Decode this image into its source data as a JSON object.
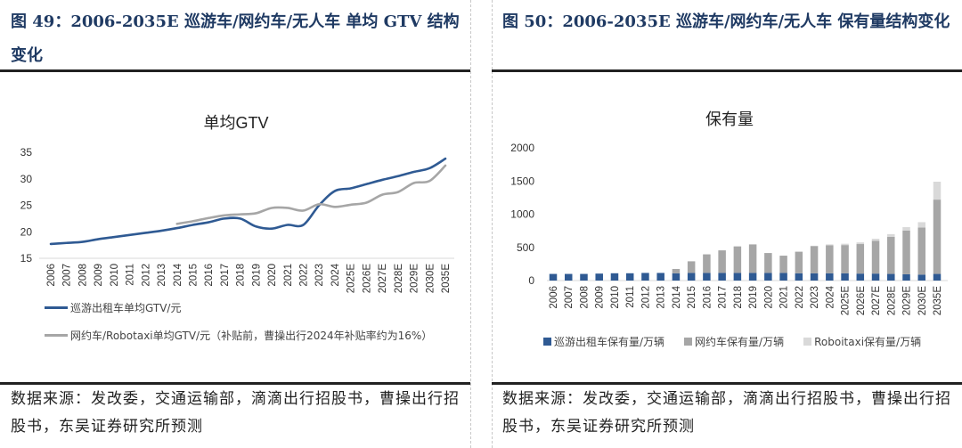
{
  "left": {
    "figure_title": "图 49：2006-2035E 巡游车/网约车/无人车  单均 GTV 结构变化",
    "source": "数据来源：发改委，交通运输部，滴滴出行招股书，曹操出行招股书，东吴证券研究所预测"
  },
  "right": {
    "figure_title": "图 50：2006-2035E 巡游车/网约车/无人车 保有量结构变化",
    "source": "数据来源：发改委，交通运输部，滴滴出行招股书，曹操出行招股书，东吴证券研究所预测"
  },
  "chart_data": [
    {
      "type": "line",
      "title": "单均GTV",
      "xlabel": "",
      "ylabel": "",
      "ylim": [
        15,
        35
      ],
      "yticks": [
        15,
        20,
        25,
        30,
        35
      ],
      "grid": false,
      "legend_position": "bottom",
      "categories": [
        "2006",
        "2007",
        "2008",
        "2009",
        "2010",
        "2011",
        "2012",
        "2013",
        "2014",
        "2015",
        "2016",
        "2017",
        "2018",
        "2019",
        "2020",
        "2021",
        "2022",
        "2023",
        "2024",
        "2025E",
        "2026E",
        "2027E",
        "2028E",
        "2029E",
        "2030E",
        "2035E"
      ],
      "series": [
        {
          "name": "巡游出租车单均GTV/元",
          "color": "#2f5a93",
          "values": [
            17.7,
            17.9,
            18.1,
            18.6,
            19.0,
            19.4,
            19.8,
            20.2,
            20.7,
            21.3,
            21.8,
            22.5,
            22.5,
            21.0,
            20.6,
            21.3,
            21.3,
            25.0,
            27.7,
            28.2,
            29.0,
            29.8,
            30.5,
            31.3,
            32.0,
            33.8
          ]
        },
        {
          "name": "网约车/Robotaxi单均GTV/元（补贴前，曹操出行2024年补贴率约为16%）",
          "color": "#a6a6a6",
          "values": [
            null,
            null,
            null,
            null,
            null,
            null,
            null,
            null,
            21.5,
            22.0,
            22.6,
            23.1,
            23.3,
            23.5,
            24.5,
            24.5,
            24.0,
            25.2,
            24.7,
            25.1,
            25.5,
            27.0,
            27.5,
            29.2,
            29.6,
            32.5
          ]
        }
      ]
    },
    {
      "type": "bar",
      "stacked": true,
      "title": "保有量",
      "xlabel": "",
      "ylabel": "",
      "ylim": [
        0,
        2000
      ],
      "yticks": [
        0,
        500,
        1000,
        1500,
        2000
      ],
      "grid": false,
      "legend_position": "bottom",
      "categories": [
        "2006",
        "2007",
        "2008",
        "2009",
        "2010",
        "2011",
        "2012",
        "2013",
        "2014",
        "2015",
        "2016",
        "2017",
        "2018",
        "2019",
        "2020",
        "2021",
        "2022",
        "2023",
        "2024",
        "2025E",
        "2026E",
        "2027E",
        "2028E",
        "2029E",
        "2030E",
        "2035E"
      ],
      "series": [
        {
          "name": "巡游出租车保有量/万辆",
          "color": "#2f5a93",
          "values": [
            100,
            100,
            100,
            105,
            110,
            110,
            115,
            115,
            110,
            115,
            115,
            115,
            115,
            115,
            115,
            115,
            110,
            110,
            110,
            110,
            105,
            105,
            100,
            95,
            90,
            100
          ]
        },
        {
          "name": "网约车保有量/万辆",
          "color": "#a6a6a6",
          "values": [
            0,
            0,
            0,
            0,
            0,
            0,
            0,
            0,
            65,
            175,
            280,
            340,
            400,
            430,
            300,
            260,
            325,
            410,
            420,
            425,
            445,
            495,
            560,
            660,
            710,
            1120
          ]
        },
        {
          "name": "Roboitaxi保有量/万辆",
          "color": "#d9d9d9",
          "values": [
            0,
            0,
            0,
            0,
            0,
            0,
            0,
            0,
            0,
            0,
            0,
            0,
            0,
            0,
            0,
            0,
            0,
            5,
            15,
            20,
            25,
            30,
            40,
            50,
            80,
            270
          ]
        }
      ]
    }
  ]
}
